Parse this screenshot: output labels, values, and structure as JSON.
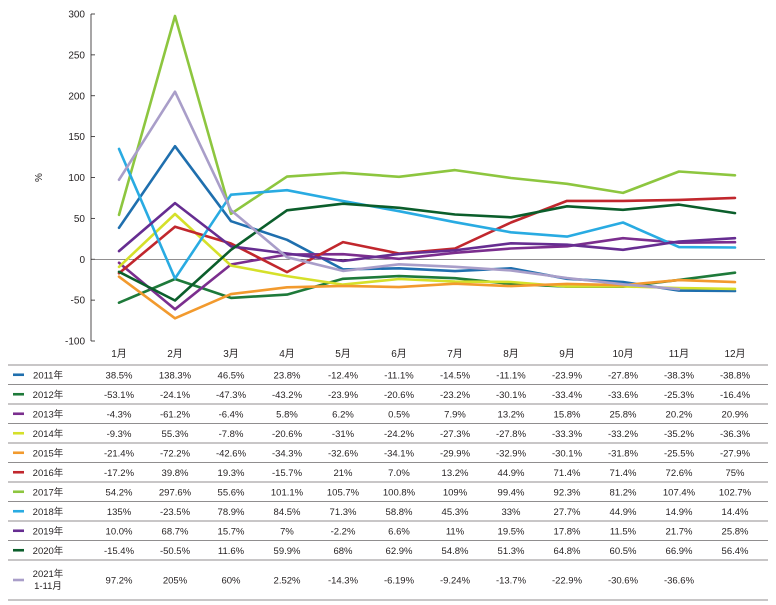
{
  "chart_data": {
    "type": "line",
    "title": "",
    "xlabel": "",
    "ylabel": "%",
    "ylim": [
      -100,
      300
    ],
    "yticks": [
      -100,
      -50,
      0,
      50,
      100,
      150,
      200,
      250,
      300
    ],
    "categories": [
      "1月",
      "2月",
      "3月",
      "4月",
      "5月",
      "6月",
      "7月",
      "8月",
      "9月",
      "10月",
      "11月",
      "12月"
    ],
    "series": [
      {
        "name": "2011年",
        "color": "#1f6fae",
        "values": [
          38.5,
          138.3,
          46.5,
          23.8,
          -12.4,
          -11.1,
          -14.5,
          -11.1,
          -23.9,
          -27.8,
          -38.3,
          -38.8
        ],
        "labels": [
          "38.5%",
          "138.3%",
          "46.5%",
          "23.8%",
          "-12.4%",
          "-11.1%",
          "-14.5%",
          "-11.1%",
          "-23.9%",
          "-27.8%",
          "-38.3%",
          "-38.8%"
        ]
      },
      {
        "name": "2012年",
        "color": "#1e7a3a",
        "values": [
          -53.1,
          -24.1,
          -47.3,
          -43.2,
          -23.9,
          -20.6,
          -23.2,
          -30.1,
          -33.4,
          -33.6,
          -25.3,
          -16.4
        ],
        "labels": [
          "-53.1%",
          "-24.1%",
          "-47.3%",
          "-43.2%",
          "-23.9%",
          "-20.6%",
          "-23.2%",
          "-30.1%",
          "-33.4%",
          "-33.6%",
          "-25.3%",
          "-16.4%"
        ]
      },
      {
        "name": "2013年",
        "color": "#7b2e8e",
        "values": [
          -4.3,
          -61.2,
          -6.4,
          5.8,
          6.2,
          0.5,
          7.9,
          13.2,
          15.8,
          25.8,
          20.2,
          20.9
        ],
        "labels": [
          "-4.3%",
          "-61.2%",
          "-6.4%",
          "5.8%",
          "6.2%",
          "0.5%",
          "7.9%",
          "13.2%",
          "15.8%",
          "25.8%",
          "20.2%",
          "20.9%"
        ]
      },
      {
        "name": "2014年",
        "color": "#d5e02a",
        "values": [
          -9.3,
          55.3,
          -7.8,
          -20.6,
          -31,
          -24.2,
          -27.3,
          -27.8,
          -33.3,
          -33.2,
          -35.2,
          -36.3
        ],
        "labels": [
          "-9.3%",
          "55.3%",
          "-7.8%",
          "-20.6%",
          "-31%",
          "-24.2%",
          "-27.3%",
          "-27.8%",
          "-33.3%",
          "-33.2%",
          "-35.2%",
          "-36.3%"
        ]
      },
      {
        "name": "2015年",
        "color": "#f29a2e",
        "values": [
          -21.4,
          -72.2,
          -42.6,
          -34.3,
          -32.6,
          -34.1,
          -29.9,
          -32.9,
          -30.1,
          -31.8,
          -25.5,
          -27.9
        ],
        "labels": [
          "-21.4%",
          "-72.2%",
          "-42.6%",
          "-34.3%",
          "-32.6%",
          "-34.1%",
          "-29.9%",
          "-32.9%",
          "-30.1%",
          "-31.8%",
          "-25.5%",
          "-27.9%"
        ]
      },
      {
        "name": "2016年",
        "color": "#c1272d",
        "values": [
          -17.2,
          39.8,
          19.3,
          -15.7,
          21,
          7.0,
          13.2,
          44.9,
          71.4,
          71.4,
          72.6,
          75
        ],
        "labels": [
          "-17.2%",
          "39.8%",
          "19.3%",
          "-15.7%",
          "21%",
          "7.0%",
          "13.2%",
          "44.9%",
          "71.4%",
          "71.4%",
          "72.6%",
          "75%"
        ]
      },
      {
        "name": "2017年",
        "color": "#8dc63f",
        "values": [
          54.2,
          297.6,
          55.6,
          101.1,
          105.7,
          100.8,
          109,
          99.4,
          92.3,
          81.2,
          107.4,
          102.7
        ],
        "labels": [
          "54.2%",
          "297.6%",
          "55.6%",
          "101.1%",
          "105.7%",
          "100.8%",
          "109%",
          "99.4%",
          "92.3%",
          "81.2%",
          "107.4%",
          "102.7%"
        ]
      },
      {
        "name": "2018年",
        "color": "#29abe2",
        "values": [
          135,
          -23.5,
          78.9,
          84.5,
          71.3,
          58.8,
          45.3,
          33,
          27.7,
          44.9,
          14.9,
          14.4
        ],
        "labels": [
          "135%",
          "-23.5%",
          "78.9%",
          "84.5%",
          "71.3%",
          "58.8%",
          "45.3%",
          "33%",
          "27.7%",
          "44.9%",
          "14.9%",
          "14.4%"
        ]
      },
      {
        "name": "2019年",
        "color": "#662d91",
        "values": [
          10.0,
          68.7,
          15.7,
          7,
          -2.2,
          6.6,
          11,
          19.5,
          17.8,
          11.5,
          21.7,
          25.8
        ],
        "labels": [
          "10.0%",
          "68.7%",
          "15.7%",
          "7%",
          "-2.2%",
          "6.6%",
          "11%",
          "19.5%",
          "17.8%",
          "11.5%",
          "21.7%",
          "25.8%"
        ]
      },
      {
        "name": "2020年",
        "color": "#0b5e2b",
        "values": [
          -15.4,
          -50.5,
          11.6,
          59.9,
          68,
          62.9,
          54.8,
          51.3,
          64.8,
          60.5,
          66.9,
          56.4
        ],
        "labels": [
          "-15.4%",
          "-50.5%",
          "11.6%",
          "59.9%",
          "68%",
          "62.9%",
          "54.8%",
          "51.3%",
          "64.8%",
          "60.5%",
          "66.9%",
          "56.4%"
        ]
      },
      {
        "name": "2021年",
        "name2": "1-11月",
        "color": "#a99ec9",
        "values": [
          97.2,
          205,
          60,
          2.52,
          -14.3,
          -6.19,
          -9.24,
          -13.7,
          -22.9,
          -30.6,
          -36.6,
          null
        ],
        "labels": [
          "97.2%",
          "205%",
          "60%",
          "2.52%",
          "-14.3%",
          "-6.19%",
          "-9.24%",
          "-13.7%",
          "-22.9%",
          "-30.6%",
          "-36.6%",
          ""
        ]
      }
    ]
  }
}
